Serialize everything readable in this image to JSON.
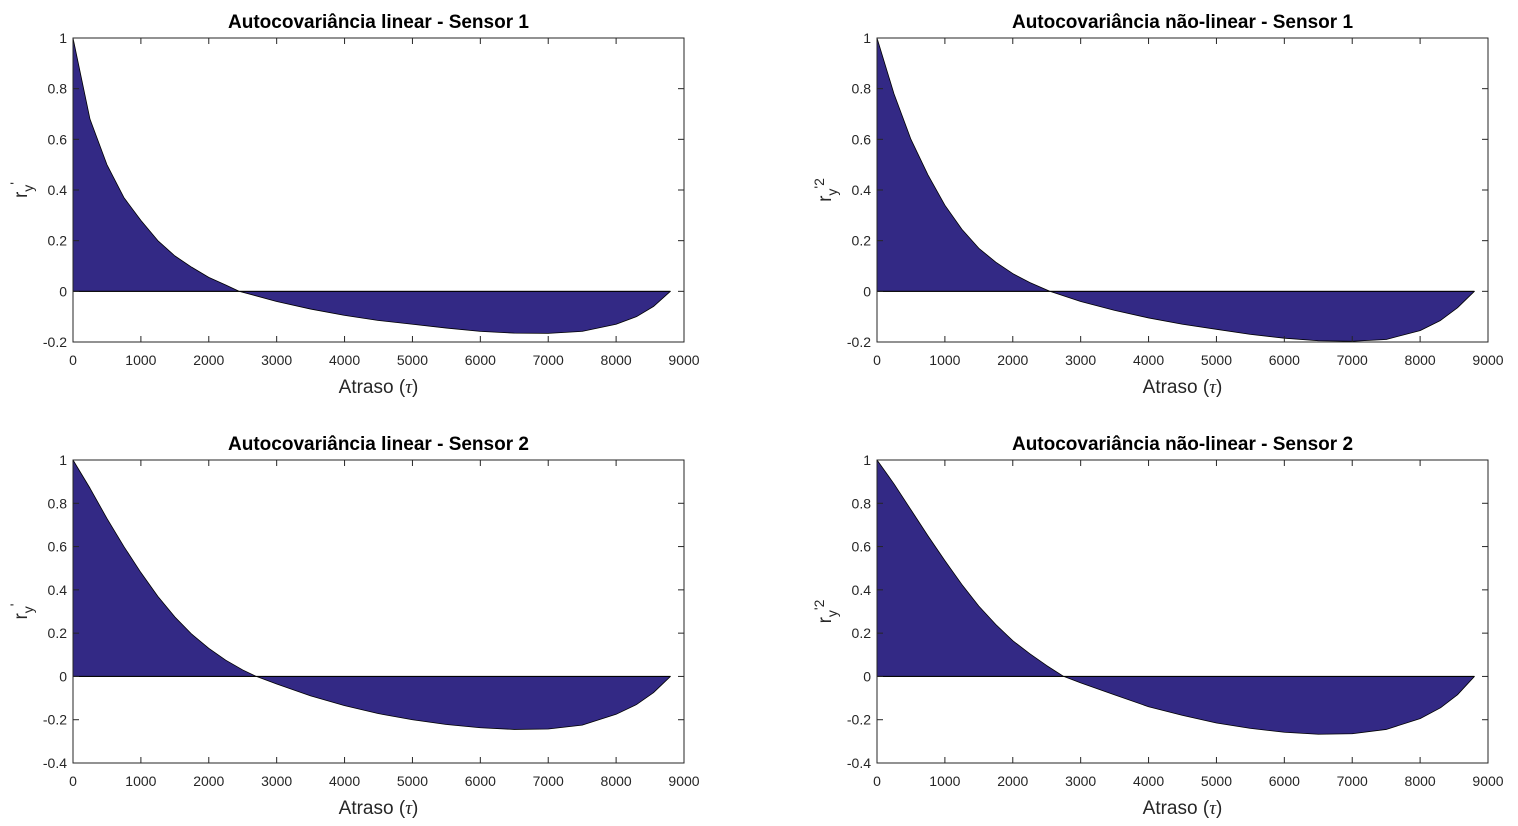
{
  "figure": {
    "colors": {
      "fill": "#332985",
      "edge": "#000000",
      "axes": "#262626"
    },
    "xlabel_text": "Atraso (",
    "xlabel_symbol": "τ",
    "xlabel_close": ")"
  },
  "chart_data": [
    {
      "type": "area",
      "title": "Autocovariância linear - Sensor 1",
      "xlabel": "Atraso (τ)",
      "ylabel_main": "r",
      "ylabel_sub": "y",
      "ylabel_sup": "'",
      "xlim": [
        0,
        9000
      ],
      "ylim": [
        -0.2,
        1
      ],
      "xticks": [
        0,
        1000,
        2000,
        3000,
        4000,
        5000,
        6000,
        7000,
        8000,
        9000
      ],
      "yticks": [
        -0.2,
        0,
        0.2,
        0.4,
        0.6,
        0.8,
        1
      ],
      "grid": false,
      "x": [
        0,
        250,
        500,
        750,
        1000,
        1250,
        1500,
        1750,
        2000,
        2250,
        2450,
        3000,
        3500,
        4000,
        4500,
        5000,
        5500,
        6000,
        6500,
        7000,
        7500,
        8000,
        8300,
        8550,
        8800
      ],
      "y": [
        1.0,
        0.68,
        0.5,
        0.37,
        0.28,
        0.2,
        0.14,
        0.095,
        0.055,
        0.025,
        0.0,
        -0.04,
        -0.07,
        -0.095,
        -0.115,
        -0.13,
        -0.145,
        -0.158,
        -0.165,
        -0.166,
        -0.158,
        -0.13,
        -0.1,
        -0.06,
        0.0
      ]
    },
    {
      "type": "area",
      "title": "Autocovariância não-linear - Sensor 1",
      "xlabel": "Atraso (τ)",
      "ylabel_main": "r",
      "ylabel_sub": "y",
      "ylabel_sup": "'2",
      "xlim": [
        0,
        9000
      ],
      "ylim": [
        -0.2,
        1
      ],
      "xticks": [
        0,
        1000,
        2000,
        3000,
        4000,
        5000,
        6000,
        7000,
        8000,
        9000
      ],
      "yticks": [
        -0.2,
        0,
        0.2,
        0.4,
        0.6,
        0.8,
        1
      ],
      "grid": false,
      "x": [
        0,
        250,
        500,
        750,
        1000,
        1250,
        1500,
        1750,
        2000,
        2250,
        2550,
        3000,
        3500,
        4000,
        4500,
        5000,
        5500,
        6000,
        6500,
        7000,
        7500,
        8000,
        8300,
        8550,
        8800
      ],
      "y": [
        1.0,
        0.78,
        0.6,
        0.46,
        0.34,
        0.245,
        0.17,
        0.115,
        0.07,
        0.035,
        0.0,
        -0.04,
        -0.075,
        -0.105,
        -0.13,
        -0.15,
        -0.17,
        -0.185,
        -0.195,
        -0.197,
        -0.19,
        -0.155,
        -0.115,
        -0.065,
        0.0
      ]
    },
    {
      "type": "area",
      "title": "Autocovariância linear - Sensor 2",
      "xlabel": "Atraso (τ)",
      "ylabel_main": "r",
      "ylabel_sub": "y",
      "ylabel_sup": "'",
      "xlim": [
        0,
        9000
      ],
      "ylim": [
        -0.4,
        1
      ],
      "xticks": [
        0,
        1000,
        2000,
        3000,
        4000,
        5000,
        6000,
        7000,
        8000,
        9000
      ],
      "yticks": [
        -0.4,
        -0.2,
        0,
        0.2,
        0.4,
        0.6,
        0.8,
        1
      ],
      "grid": false,
      "x": [
        0,
        250,
        500,
        750,
        1000,
        1250,
        1500,
        1750,
        2000,
        2250,
        2500,
        2700,
        3000,
        3500,
        4000,
        4500,
        5000,
        5500,
        6000,
        6500,
        7000,
        7500,
        8000,
        8300,
        8550,
        8800
      ],
      "y": [
        1.0,
        0.87,
        0.73,
        0.6,
        0.48,
        0.37,
        0.275,
        0.195,
        0.13,
        0.075,
        0.03,
        0.0,
        -0.035,
        -0.09,
        -0.135,
        -0.172,
        -0.2,
        -0.222,
        -0.237,
        -0.245,
        -0.243,
        -0.225,
        -0.175,
        -0.13,
        -0.075,
        0.0
      ]
    },
    {
      "type": "area",
      "title": "Autocovariância não-linear - Sensor 2",
      "xlabel": "Atraso (τ)",
      "ylabel_main": "r",
      "ylabel_sub": "y",
      "ylabel_sup": "'2",
      "xlim": [
        0,
        9000
      ],
      "ylim": [
        -0.4,
        1
      ],
      "xticks": [
        0,
        1000,
        2000,
        3000,
        4000,
        5000,
        6000,
        7000,
        8000,
        9000
      ],
      "yticks": [
        -0.4,
        -0.2,
        0,
        0.2,
        0.4,
        0.6,
        0.8,
        1
      ],
      "grid": false,
      "x": [
        0,
        250,
        500,
        750,
        1000,
        1250,
        1500,
        1750,
        2000,
        2250,
        2500,
        2750,
        3000,
        3500,
        4000,
        4500,
        5000,
        5500,
        6000,
        6500,
        7000,
        7500,
        8000,
        8300,
        8550,
        8800
      ],
      "y": [
        1.0,
        0.89,
        0.77,
        0.65,
        0.535,
        0.425,
        0.325,
        0.24,
        0.165,
        0.105,
        0.05,
        0.0,
        -0.03,
        -0.085,
        -0.14,
        -0.18,
        -0.215,
        -0.24,
        -0.258,
        -0.267,
        -0.265,
        -0.245,
        -0.195,
        -0.145,
        -0.085,
        0.0
      ]
    }
  ]
}
